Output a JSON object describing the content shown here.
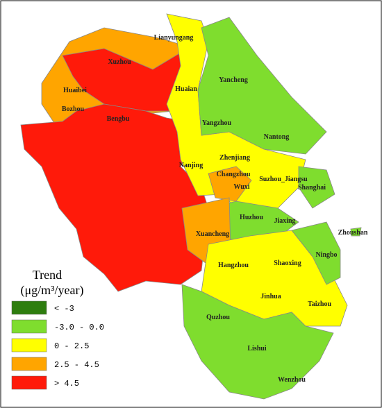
{
  "legend": {
    "title": "Trend",
    "unit": "(μg/m³/year)",
    "items": [
      {
        "label": "< -3",
        "color": "#2e7d0f"
      },
      {
        "label": "-3.0 - 0.0",
        "color": "#7fdd2e"
      },
      {
        "label": "0 - 2.5",
        "color": "#ffff00"
      },
      {
        "label": "2.5 - 4.5",
        "color": "#ffa500"
      },
      {
        "label": "> 4.5",
        "color": "#ff1a0a"
      }
    ]
  },
  "cities": [
    "Lianyungang",
    "Xuzhou",
    "Huaibei",
    "Bozhou",
    "Bengbu",
    "Huaian",
    "Yancheng",
    "Yangzhou",
    "Nantong",
    "Nanjing",
    "Zhenjiang",
    "Changzhou",
    "Wuxi",
    "Suzhou_Jiangsu",
    "Shanghai",
    "Huzhou",
    "Jiaxing",
    "Zhoushan",
    "Xuancheng",
    "Hangzhou",
    "Shaoxing",
    "Ningbo",
    "Jinhua",
    "Taizhou",
    "Quzhou",
    "Lishui",
    "Wenzhou"
  ]
}
